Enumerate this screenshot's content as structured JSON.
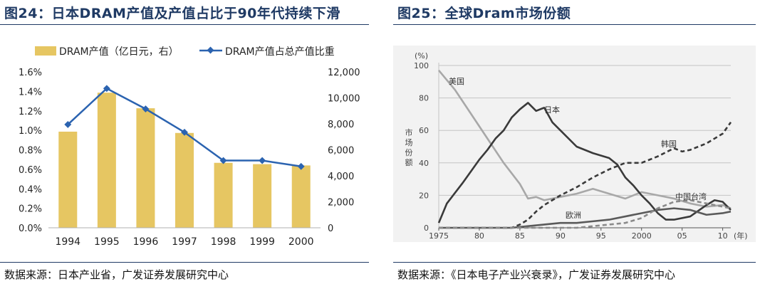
{
  "left": {
    "title": "图24：日本DRAM产值及产值占比于90年代持续下滑",
    "source": "数据来源：日本产业省，广发证券发展研究中心"
  },
  "right": {
    "title": "图25：全球Dram市场份额",
    "source": "数据来源：《日本电子产业兴衰录》，广发证券发展研究中心"
  },
  "chart_data": [
    {
      "type": "bar+line",
      "categories": [
        "1994",
        "1995",
        "1996",
        "1997",
        "1998",
        "1999",
        "2000"
      ],
      "series": [
        {
          "name": "DRAM产值（亿日元，右）",
          "type": "bar",
          "axis": "right",
          "color": "#e6c662",
          "values": [
            7400,
            10400,
            9200,
            7300,
            5000,
            4900,
            4800
          ]
        },
        {
          "name": "DRAM产值占总产值比重",
          "type": "line",
          "axis": "left",
          "color": "#2b63b0",
          "values": [
            1.06,
            1.43,
            1.22,
            0.98,
            0.69,
            0.69,
            0.63
          ]
        }
      ],
      "y_left": {
        "min": 0,
        "max": 1.6,
        "step": 0.2,
        "ticks": [
          "0.0%",
          "0.2%",
          "0.4%",
          "0.6%",
          "0.8%",
          "1.0%",
          "1.2%",
          "1.4%",
          "1.6%"
        ]
      },
      "y_right": {
        "min": 0,
        "max": 12000,
        "step": 2000,
        "ticks": [
          "0",
          "2,000",
          "4,000",
          "6,000",
          "8,000",
          "10,000",
          "12,000"
        ]
      },
      "legend": [
        "DRAM产值（亿日元，右）",
        "DRAM产值占总产值比重"
      ]
    },
    {
      "type": "line",
      "x_range": [
        1975,
        2011
      ],
      "x_ticks": [
        "1975",
        "80",
        "85",
        "90",
        "95",
        "2000",
        "05",
        "10"
      ],
      "x_unit": "(年)",
      "y_range": [
        0,
        100
      ],
      "y_ticks": [
        "0",
        "20",
        "40",
        "60",
        "80",
        "100"
      ],
      "y_unit": "(%)",
      "ylabel": "市场份额",
      "series": [
        {
          "name": "美国",
          "color": "#a8a8a8",
          "style": "solid",
          "x": [
            1975,
            1977,
            1979,
            1981,
            1983,
            1985,
            1986,
            1987,
            1988,
            1990,
            1992,
            1994,
            1996,
            1998,
            2000,
            2002,
            2004,
            2006,
            2008,
            2010,
            2011
          ],
          "y": [
            97,
            85,
            70,
            55,
            40,
            27,
            18,
            19,
            17,
            19,
            21,
            24,
            21,
            18,
            22,
            20,
            18,
            15,
            13,
            14,
            12
          ]
        },
        {
          "name": "日本",
          "color": "#3a3a3a",
          "style": "solid",
          "x": [
            1975,
            1976,
            1978,
            1980,
            1981,
            1982,
            1983,
            1984,
            1985,
            1986,
            1987,
            1988,
            1989,
            1990,
            1992,
            1994,
            1996,
            1997,
            1998,
            1999,
            2000,
            2001,
            2002,
            2003,
            2004,
            2006,
            2008,
            2009,
            2010,
            2011
          ],
          "y": [
            3,
            15,
            28,
            42,
            48,
            55,
            60,
            68,
            73,
            77,
            72,
            74,
            65,
            60,
            50,
            46,
            43,
            39,
            31,
            26,
            20,
            15,
            9,
            5,
            5,
            7,
            14,
            17,
            16,
            11
          ]
        },
        {
          "name": "韩国",
          "color": "#3a3a3a",
          "style": "dashed",
          "x": [
            1975,
            1984,
            1985,
            1986,
            1987,
            1988,
            1990,
            1992,
            1994,
            1996,
            1998,
            2000,
            2002,
            2004,
            2005,
            2006,
            2008,
            2010,
            2011
          ],
          "y": [
            0,
            0,
            2,
            5,
            10,
            14,
            20,
            25,
            31,
            36,
            40,
            40,
            44,
            49,
            47,
            48,
            52,
            58,
            65
          ]
        },
        {
          "name": "欧洲",
          "color": "#5a5a5a",
          "style": "solid",
          "x": [
            1975,
            1984,
            1986,
            1988,
            1990,
            1992,
            1994,
            1996,
            1998,
            2000,
            2002,
            2004,
            2006,
            2008,
            2010,
            2011
          ],
          "y": [
            0,
            0,
            1,
            2,
            3,
            3,
            4,
            5,
            7,
            9,
            11,
            12,
            11,
            8,
            9,
            10
          ]
        },
        {
          "name": "中国台湾",
          "color": "#8a8a8a",
          "style": "dashed",
          "x": [
            1975,
            1992,
            1994,
            1996,
            1998,
            2000,
            2002,
            2004,
            2006,
            2008,
            2010,
            2011
          ],
          "y": [
            0,
            0,
            1,
            2,
            3,
            6,
            12,
            16,
            17,
            15,
            13,
            12
          ]
        }
      ]
    }
  ]
}
